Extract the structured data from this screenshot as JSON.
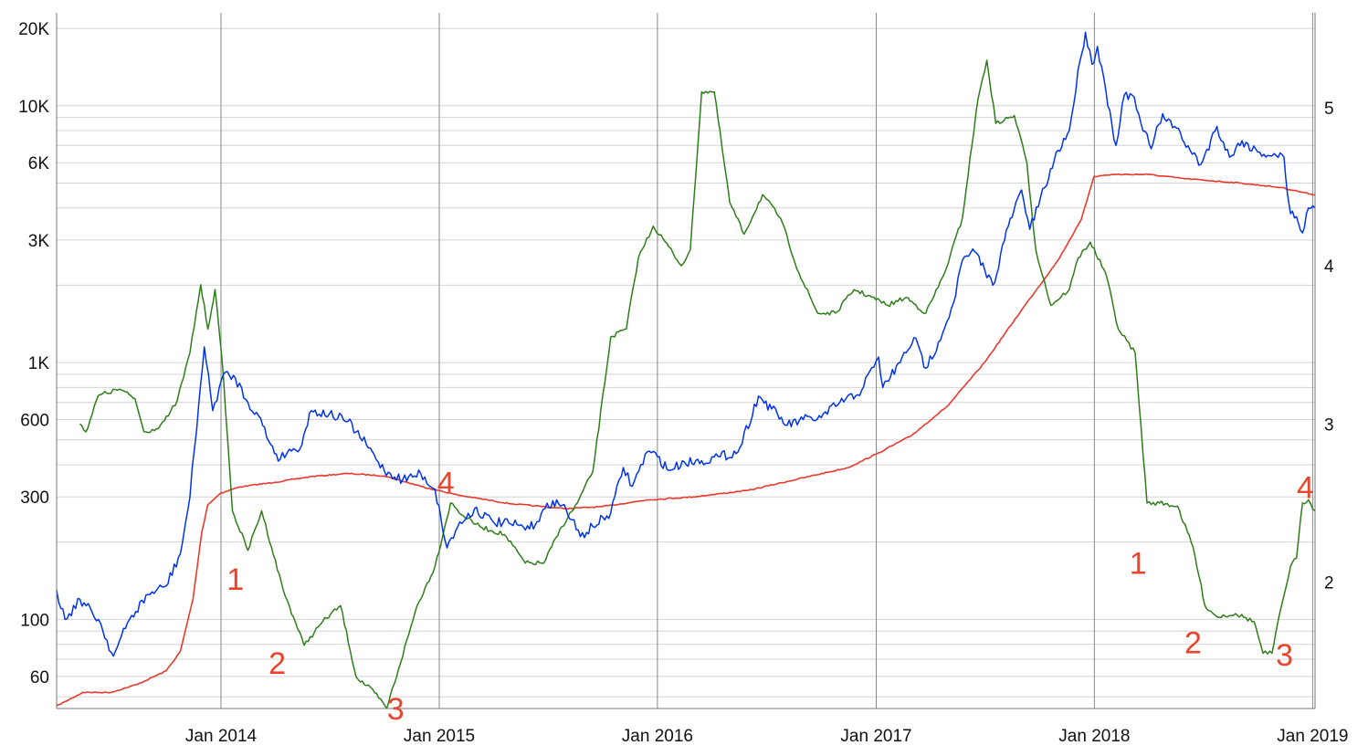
{
  "chart_data": {
    "type": "line",
    "title": "",
    "xlabel": "",
    "ylabel": "",
    "x_range": [
      "2013-04-01",
      "2019-01-05"
    ],
    "x_ticks": [
      {
        "date": "2014-01-01",
        "label": "Jan 2014"
      },
      {
        "date": "2015-01-01",
        "label": "Jan 2015"
      },
      {
        "date": "2016-01-01",
        "label": "Jan 2016"
      },
      {
        "date": "2017-01-01",
        "label": "Jan 2017"
      },
      {
        "date": "2018-01-01",
        "label": "Jan 2018"
      },
      {
        "date": "2019-01-01",
        "label": "Jan 2019"
      }
    ],
    "y_left": {
      "scale": "log",
      "range": [
        45,
        23000
      ],
      "tick_labels": [
        {
          "value": 20000,
          "label": "20K"
        },
        {
          "value": 10000,
          "label": "10K"
        },
        {
          "value": 6000,
          "label": "6K"
        },
        {
          "value": 3000,
          "label": "3K"
        },
        {
          "value": 1000,
          "label": "1K"
        },
        {
          "value": 600,
          "label": "600"
        },
        {
          "value": 300,
          "label": "300"
        },
        {
          "value": 100,
          "label": "100"
        },
        {
          "value": 60,
          "label": "60"
        }
      ],
      "gridlines": [
        50,
        60,
        70,
        80,
        90,
        100,
        200,
        300,
        400,
        500,
        600,
        700,
        800,
        900,
        1000,
        2000,
        3000,
        4000,
        5000,
        6000,
        7000,
        8000,
        9000,
        10000,
        20000
      ]
    },
    "y_right": {
      "range": [
        1.2,
        5.6
      ],
      "tick_labels": [
        {
          "value": 2,
          "label": "2"
        },
        {
          "value": 3,
          "label": "3"
        },
        {
          "value": 4,
          "label": "4"
        },
        {
          "value": 5,
          "label": "5"
        }
      ]
    },
    "grid": true,
    "legend": "none",
    "series": [
      {
        "color": "#0033ee",
        "axis": "left",
        "points": [
          [
            "2013-04-01",
            130
          ],
          [
            "2013-04-15",
            100
          ],
          [
            "2013-05-10",
            120
          ],
          [
            "2013-06-10",
            100
          ],
          [
            "2013-07-05",
            72
          ],
          [
            "2013-08-01",
            100
          ],
          [
            "2013-09-01",
            125
          ],
          [
            "2013-10-01",
            135
          ],
          [
            "2013-10-25",
            180
          ],
          [
            "2013-11-10",
            300
          ],
          [
            "2013-11-25",
            700
          ],
          [
            "2013-12-04",
            1150
          ],
          [
            "2013-12-18",
            650
          ],
          [
            "2014-01-05",
            900
          ],
          [
            "2014-01-25",
            870
          ],
          [
            "2014-02-15",
            700
          ],
          [
            "2014-03-05",
            620
          ],
          [
            "2014-03-25",
            480
          ],
          [
            "2014-04-10",
            420
          ],
          [
            "2014-04-25",
            460
          ],
          [
            "2014-05-10",
            450
          ],
          [
            "2014-06-01",
            650
          ],
          [
            "2014-07-01",
            630
          ],
          [
            "2014-08-01",
            590
          ],
          [
            "2014-09-01",
            480
          ],
          [
            "2014-10-01",
            380
          ],
          [
            "2014-11-01",
            350
          ],
          [
            "2014-12-01",
            370
          ],
          [
            "2014-12-25",
            320
          ],
          [
            "2015-01-14",
            190
          ],
          [
            "2015-02-01",
            230
          ],
          [
            "2015-03-01",
            270
          ],
          [
            "2015-04-01",
            240
          ],
          [
            "2015-05-01",
            235
          ],
          [
            "2015-06-01",
            225
          ],
          [
            "2015-07-10",
            290
          ],
          [
            "2015-08-01",
            270
          ],
          [
            "2015-08-25",
            210
          ],
          [
            "2015-09-15",
            230
          ],
          [
            "2015-10-15",
            260
          ],
          [
            "2015-11-05",
            390
          ],
          [
            "2015-11-20",
            330
          ],
          [
            "2015-12-15",
            450
          ],
          [
            "2016-01-01",
            430
          ],
          [
            "2016-01-20",
            380
          ],
          [
            "2016-02-15",
            410
          ],
          [
            "2016-03-15",
            415
          ],
          [
            "2016-04-15",
            430
          ],
          [
            "2016-05-15",
            450
          ],
          [
            "2016-06-18",
            740
          ],
          [
            "2016-07-10",
            660
          ],
          [
            "2016-08-05",
            570
          ],
          [
            "2016-09-01",
            600
          ],
          [
            "2016-10-01",
            610
          ],
          [
            "2016-11-01",
            700
          ],
          [
            "2016-12-01",
            750
          ],
          [
            "2016-12-28",
            960
          ],
          [
            "2017-01-05",
            1050
          ],
          [
            "2017-01-12",
            800
          ],
          [
            "2017-02-10",
            1000
          ],
          [
            "2017-03-05",
            1250
          ],
          [
            "2017-03-25",
            950
          ],
          [
            "2017-04-15",
            1200
          ],
          [
            "2017-05-10",
            1700
          ],
          [
            "2017-05-25",
            2500
          ],
          [
            "2017-06-15",
            2700
          ],
          [
            "2017-07-15",
            2000
          ],
          [
            "2017-08-10",
            3400
          ],
          [
            "2017-09-01",
            4700
          ],
          [
            "2017-09-15",
            3300
          ],
          [
            "2017-10-10",
            4800
          ],
          [
            "2017-11-01",
            6700
          ],
          [
            "2017-11-20",
            8000
          ],
          [
            "2017-12-08",
            15000
          ],
          [
            "2017-12-17",
            19300
          ],
          [
            "2017-12-28",
            14500
          ],
          [
            "2018-01-06",
            17000
          ],
          [
            "2018-01-20",
            11500
          ],
          [
            "2018-02-06",
            7000
          ],
          [
            "2018-02-20",
            11000
          ],
          [
            "2018-03-05",
            11000
          ],
          [
            "2018-03-20",
            8500
          ],
          [
            "2018-04-06",
            6800
          ],
          [
            "2018-04-25",
            9300
          ],
          [
            "2018-05-15",
            8300
          ],
          [
            "2018-06-10",
            6700
          ],
          [
            "2018-06-28",
            5900
          ],
          [
            "2018-07-25",
            8300
          ],
          [
            "2018-08-15",
            6300
          ],
          [
            "2018-09-05",
            7300
          ],
          [
            "2018-10-01",
            6600
          ],
          [
            "2018-11-01",
            6400
          ],
          [
            "2018-11-14",
            6300
          ],
          [
            "2018-11-20",
            4500
          ],
          [
            "2018-11-25",
            3800
          ],
          [
            "2018-12-05",
            3700
          ],
          [
            "2018-12-15",
            3200
          ],
          [
            "2018-12-25",
            4000
          ],
          [
            "2019-01-05",
            4000
          ]
        ]
      },
      {
        "color": "#e8392c",
        "axis": "left",
        "points": [
          [
            "2013-04-01",
            46
          ],
          [
            "2013-05-15",
            52
          ],
          [
            "2013-07-01",
            52
          ],
          [
            "2013-08-15",
            56
          ],
          [
            "2013-10-01",
            63
          ],
          [
            "2013-10-25",
            75
          ],
          [
            "2013-11-15",
            120
          ],
          [
            "2013-11-30",
            220
          ],
          [
            "2013-12-10",
            280
          ],
          [
            "2013-12-31",
            310
          ],
          [
            "2014-02-01",
            328
          ],
          [
            "2014-04-01",
            342
          ],
          [
            "2014-06-01",
            360
          ],
          [
            "2014-08-01",
            370
          ],
          [
            "2014-10-01",
            362
          ],
          [
            "2014-12-01",
            330
          ],
          [
            "2015-02-01",
            305
          ],
          [
            "2015-05-01",
            282
          ],
          [
            "2015-08-01",
            270
          ],
          [
            "2015-10-01",
            275
          ],
          [
            "2015-12-15",
            292
          ],
          [
            "2016-03-01",
            300
          ],
          [
            "2016-06-01",
            318
          ],
          [
            "2016-09-01",
            356
          ],
          [
            "2016-11-15",
            390
          ],
          [
            "2017-01-01",
            440
          ],
          [
            "2017-03-01",
            520
          ],
          [
            "2017-05-01",
            680
          ],
          [
            "2017-07-01",
            1000
          ],
          [
            "2017-09-01",
            1600
          ],
          [
            "2017-11-01",
            2500
          ],
          [
            "2017-12-10",
            3600
          ],
          [
            "2017-12-31",
            5300
          ],
          [
            "2018-02-01",
            5400
          ],
          [
            "2018-04-01",
            5400
          ],
          [
            "2018-06-01",
            5200
          ],
          [
            "2018-09-01",
            5000
          ],
          [
            "2018-11-10",
            4800
          ],
          [
            "2018-12-15",
            4600
          ],
          [
            "2019-01-05",
            4500
          ]
        ]
      },
      {
        "color": "#2e7d1a",
        "axis": "right",
        "points": [
          [
            "2013-05-10",
            3.0
          ],
          [
            "2013-05-20",
            2.95
          ],
          [
            "2013-06-10",
            3.18
          ],
          [
            "2013-07-15",
            3.22
          ],
          [
            "2013-08-10",
            3.16
          ],
          [
            "2013-08-25",
            2.95
          ],
          [
            "2013-09-15",
            2.97
          ],
          [
            "2013-10-05",
            3.05
          ],
          [
            "2013-10-20",
            3.15
          ],
          [
            "2013-11-10",
            3.45
          ],
          [
            "2013-11-28",
            3.88
          ],
          [
            "2013-12-10",
            3.6
          ],
          [
            "2013-12-22",
            3.85
          ],
          [
            "2014-01-05",
            3.3
          ],
          [
            "2014-01-20",
            2.45
          ],
          [
            "2014-02-15",
            2.2
          ],
          [
            "2014-03-10",
            2.45
          ],
          [
            "2014-04-15",
            1.95
          ],
          [
            "2014-05-20",
            1.6
          ],
          [
            "2014-06-20",
            1.75
          ],
          [
            "2014-07-20",
            1.85
          ],
          [
            "2014-08-15",
            1.4
          ],
          [
            "2014-09-15",
            1.3
          ],
          [
            "2014-10-05",
            1.2
          ],
          [
            "2014-10-25",
            1.45
          ],
          [
            "2014-11-25",
            1.85
          ],
          [
            "2014-12-25",
            2.1
          ],
          [
            "2015-01-20",
            2.5
          ],
          [
            "2015-02-10",
            2.42
          ],
          [
            "2015-03-10",
            2.35
          ],
          [
            "2015-04-20",
            2.3
          ],
          [
            "2015-05-25",
            2.12
          ],
          [
            "2015-06-25",
            2.12
          ],
          [
            "2015-07-25",
            2.35
          ],
          [
            "2015-08-20",
            2.5
          ],
          [
            "2015-09-15",
            2.7
          ],
          [
            "2015-10-15",
            3.55
          ],
          [
            "2015-11-10",
            3.6
          ],
          [
            "2015-11-30",
            4.05
          ],
          [
            "2015-12-25",
            4.25
          ],
          [
            "2016-01-20",
            4.12
          ],
          [
            "2016-02-10",
            4.0
          ],
          [
            "2016-02-25",
            4.1
          ],
          [
            "2016-03-15",
            5.1
          ],
          [
            "2016-04-05",
            5.1
          ],
          [
            "2016-05-01",
            4.4
          ],
          [
            "2016-05-25",
            4.2
          ],
          [
            "2016-06-25",
            4.45
          ],
          [
            "2016-07-25",
            4.3
          ],
          [
            "2016-08-25",
            3.95
          ],
          [
            "2016-09-25",
            3.7
          ],
          [
            "2016-10-25",
            3.7
          ],
          [
            "2016-11-25",
            3.85
          ],
          [
            "2016-12-25",
            3.8
          ],
          [
            "2017-01-20",
            3.75
          ],
          [
            "2017-02-20",
            3.8
          ],
          [
            "2017-03-25",
            3.7
          ],
          [
            "2017-04-25",
            3.95
          ],
          [
            "2017-05-25",
            4.3
          ],
          [
            "2017-06-20",
            5.05
          ],
          [
            "2017-07-05",
            5.3
          ],
          [
            "2017-07-20",
            4.9
          ],
          [
            "2017-08-20",
            4.95
          ],
          [
            "2017-09-10",
            4.65
          ],
          [
            "2017-09-25",
            4.1
          ],
          [
            "2017-10-20",
            3.75
          ],
          [
            "2017-11-20",
            3.85
          ],
          [
            "2017-12-05",
            4.05
          ],
          [
            "2017-12-25",
            4.15
          ],
          [
            "2018-01-20",
            3.95
          ],
          [
            "2018-02-10",
            3.6
          ],
          [
            "2018-03-10",
            3.45
          ],
          [
            "2018-03-30",
            2.5
          ],
          [
            "2018-04-20",
            2.5
          ],
          [
            "2018-05-20",
            2.48
          ],
          [
            "2018-06-15",
            2.22
          ],
          [
            "2018-07-05",
            1.85
          ],
          [
            "2018-07-25",
            1.78
          ],
          [
            "2018-08-25",
            1.8
          ],
          [
            "2018-09-25",
            1.75
          ],
          [
            "2018-10-10",
            1.55
          ],
          [
            "2018-10-25",
            1.55
          ],
          [
            "2018-11-10",
            1.85
          ],
          [
            "2018-11-25",
            2.1
          ],
          [
            "2018-12-05",
            2.15
          ],
          [
            "2018-12-15",
            2.5
          ],
          [
            "2018-12-25",
            2.52
          ],
          [
            "2019-01-05",
            2.45
          ]
        ]
      }
    ],
    "annotations": [
      {
        "text": "1",
        "date": "2014-01-25",
        "right_value": 2.02
      },
      {
        "text": "2",
        "date": "2014-04-05",
        "right_value": 1.49
      },
      {
        "text": "3",
        "date": "2014-10-20",
        "right_value": 1.2
      },
      {
        "text": "4",
        "date": "2015-01-12",
        "right_value": 2.63
      },
      {
        "text": "1",
        "date": "2018-03-15",
        "right_value": 2.12
      },
      {
        "text": "2",
        "date": "2018-06-15",
        "right_value": 1.62
      },
      {
        "text": "3",
        "date": "2018-11-15",
        "right_value": 1.54
      },
      {
        "text": "4",
        "date": "2018-12-20",
        "right_value": 2.6
      }
    ]
  }
}
